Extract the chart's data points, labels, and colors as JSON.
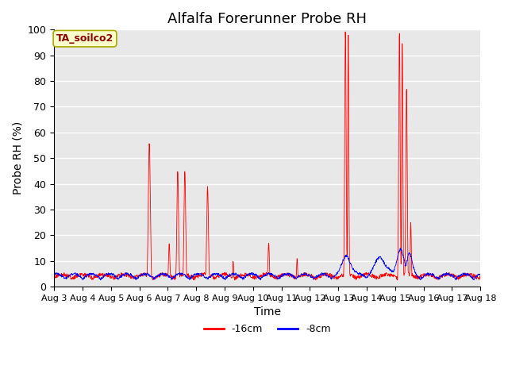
{
  "title": "Alfalfa Forerunner Probe RH",
  "xlabel": "Time",
  "ylabel": "Probe RH (%)",
  "ylim": [
    0,
    100
  ],
  "annotation": "TA_soilco2",
  "legend_labels": [
    "-16cm",
    "-8cm"
  ],
  "legend_colors": [
    "red",
    "blue"
  ],
  "bg_color": "#e8e8e8",
  "grid_color": "white",
  "x_tick_labels": [
    "Aug 3",
    "Aug 4",
    "Aug 5",
    "Aug 6",
    "Aug 7",
    "Aug 8",
    "Aug 9",
    "Aug 10",
    "Aug 11",
    "Aug 12",
    "Aug 13",
    "Aug 14",
    "Aug 15",
    "Aug 16",
    "Aug 17",
    "Aug 18"
  ],
  "title_fontsize": 13,
  "axis_label_fontsize": 10
}
